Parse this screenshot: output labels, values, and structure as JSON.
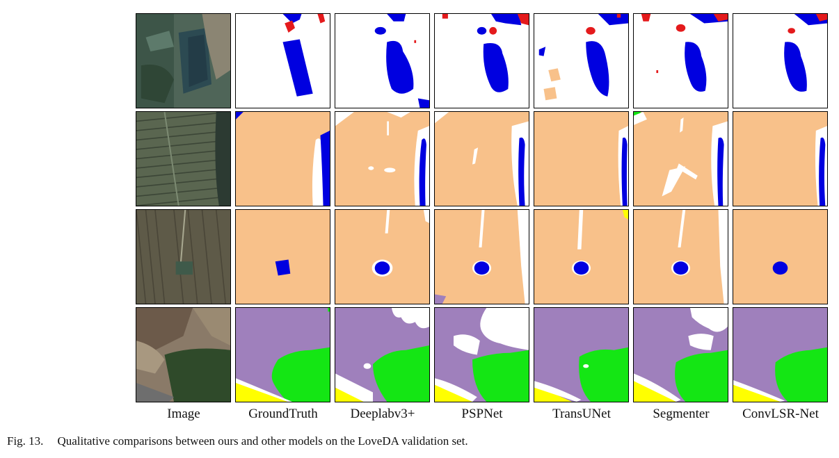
{
  "figure": {
    "column_labels": [
      "Image",
      "GroundTruth",
      "Deeplabv3+",
      "PSPNet",
      "TransUNet",
      "Segmenter",
      "ConvLSR-Net"
    ],
    "caption_number": "Fig. 13.",
    "caption_text": "Qualitative comparisons between ours and other models on the LoveDA validation set.",
    "class_colors": {
      "background": "#ffffff",
      "building": "#e41a1c",
      "water": "#0000e0",
      "agriculture": "#f8c18a",
      "barren": "#9f80bc",
      "forest": "#14e614",
      "road": "#ffff00"
    }
  }
}
